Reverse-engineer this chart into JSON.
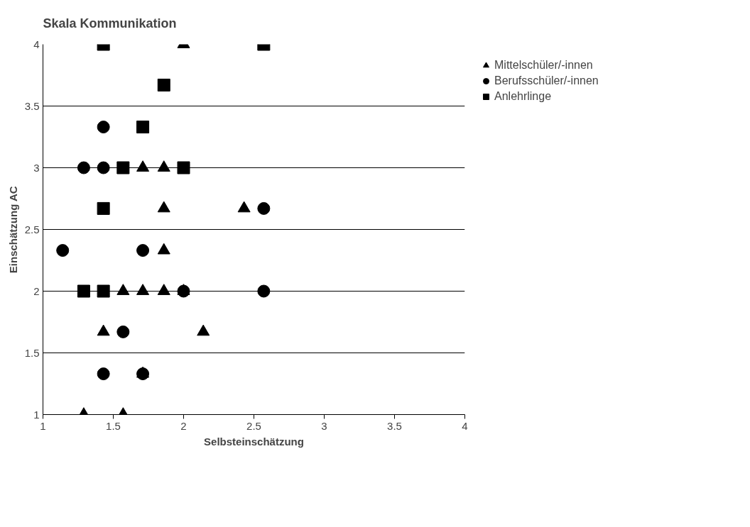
{
  "chart_data": {
    "type": "scatter",
    "title": "Skala Kommunikation",
    "xlabel": "Selbsteinschätzung",
    "ylabel": "Einschätzung AC",
    "xlim": [
      1,
      4
    ],
    "ylim": [
      1,
      4
    ],
    "xticks": [
      1,
      1.5,
      2,
      2.5,
      3,
      3.5,
      4
    ],
    "yticks": [
      1,
      1.5,
      2,
      2.5,
      3,
      3.5,
      4
    ],
    "grid": "y",
    "legend": "top right",
    "series": [
      {
        "name": "Mittelschüler/-innen",
        "color": "#000000",
        "marker": "triangle",
        "x": [
          1.29,
          1.57,
          1.43,
          2.14,
          1.71,
          1.57,
          1.71,
          1.86,
          2,
          1.86,
          1.86,
          2.43,
          1.71,
          1.86,
          2
        ],
        "values": [
          1,
          1,
          1.67,
          1.67,
          1.33,
          2,
          2,
          2,
          2,
          2.33,
          2.67,
          2.67,
          3,
          3,
          4
        ]
      },
      {
        "name": "Berufsschüler/-innen",
        "color": "#000000",
        "marker": "circle",
        "x": [
          1.43,
          1.71,
          1.57,
          2,
          2.57,
          1.14,
          1.71,
          2.57,
          1.29,
          1.43,
          1.43
        ],
        "values": [
          1.33,
          1.33,
          1.67,
          2,
          2,
          2.33,
          2.33,
          2.67,
          3,
          3,
          3.33
        ]
      },
      {
        "name": "Anlehrlinge",
        "color": "#000000",
        "marker": "square",
        "x": [
          1.29,
          1.43,
          1.43,
          1.57,
          2,
          1.71,
          1.86,
          1.43,
          2.57
        ],
        "values": [
          2,
          2,
          2.67,
          3,
          3,
          3.33,
          3.67,
          4,
          4
        ]
      }
    ]
  }
}
